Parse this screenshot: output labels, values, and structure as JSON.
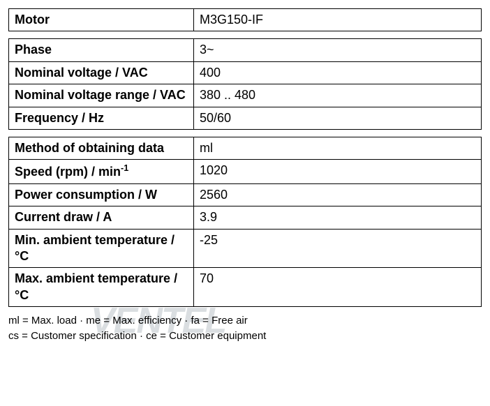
{
  "table1": {
    "rows": [
      {
        "label": "Motor",
        "value": "M3G150-IF"
      }
    ]
  },
  "table2": {
    "rows": [
      {
        "label": "Phase",
        "value": "3~"
      },
      {
        "label": "Nominal voltage / VAC",
        "value": "400"
      },
      {
        "label": "Nominal voltage range / VAC",
        "value": "380 .. 480"
      },
      {
        "label": "Frequency / Hz",
        "value": "50/60"
      }
    ]
  },
  "table3": {
    "rows": [
      {
        "label": "Method of obtaining data",
        "value": "ml"
      },
      {
        "label_html": "Speed (rpm) / min<sup>-1</sup>",
        "value": "1020"
      },
      {
        "label": "Power consumption / W",
        "value": "2560"
      },
      {
        "label": "Current draw / A",
        "value": "3.9"
      },
      {
        "label": "Min. ambient temperature / °C",
        "value": "-25"
      },
      {
        "label": "Max. ambient temperature / °C",
        "value": "70"
      }
    ]
  },
  "footnotes": {
    "line1": "ml = Max. load · me = Max. efficiency · fa = Free air",
    "line2": "cs = Customer specification · ce = Customer equipment"
  },
  "watermark": "VENTEL",
  "styling": {
    "border_color": "#000000",
    "border_width": 1.5,
    "label_col_width": 265,
    "font_size": 18,
    "footnote_font_size": 15,
    "background_color": "#ffffff",
    "font_family": "Arial, Helvetica, sans-serif",
    "watermark_color": "rgba(150,160,170,0.35)"
  }
}
